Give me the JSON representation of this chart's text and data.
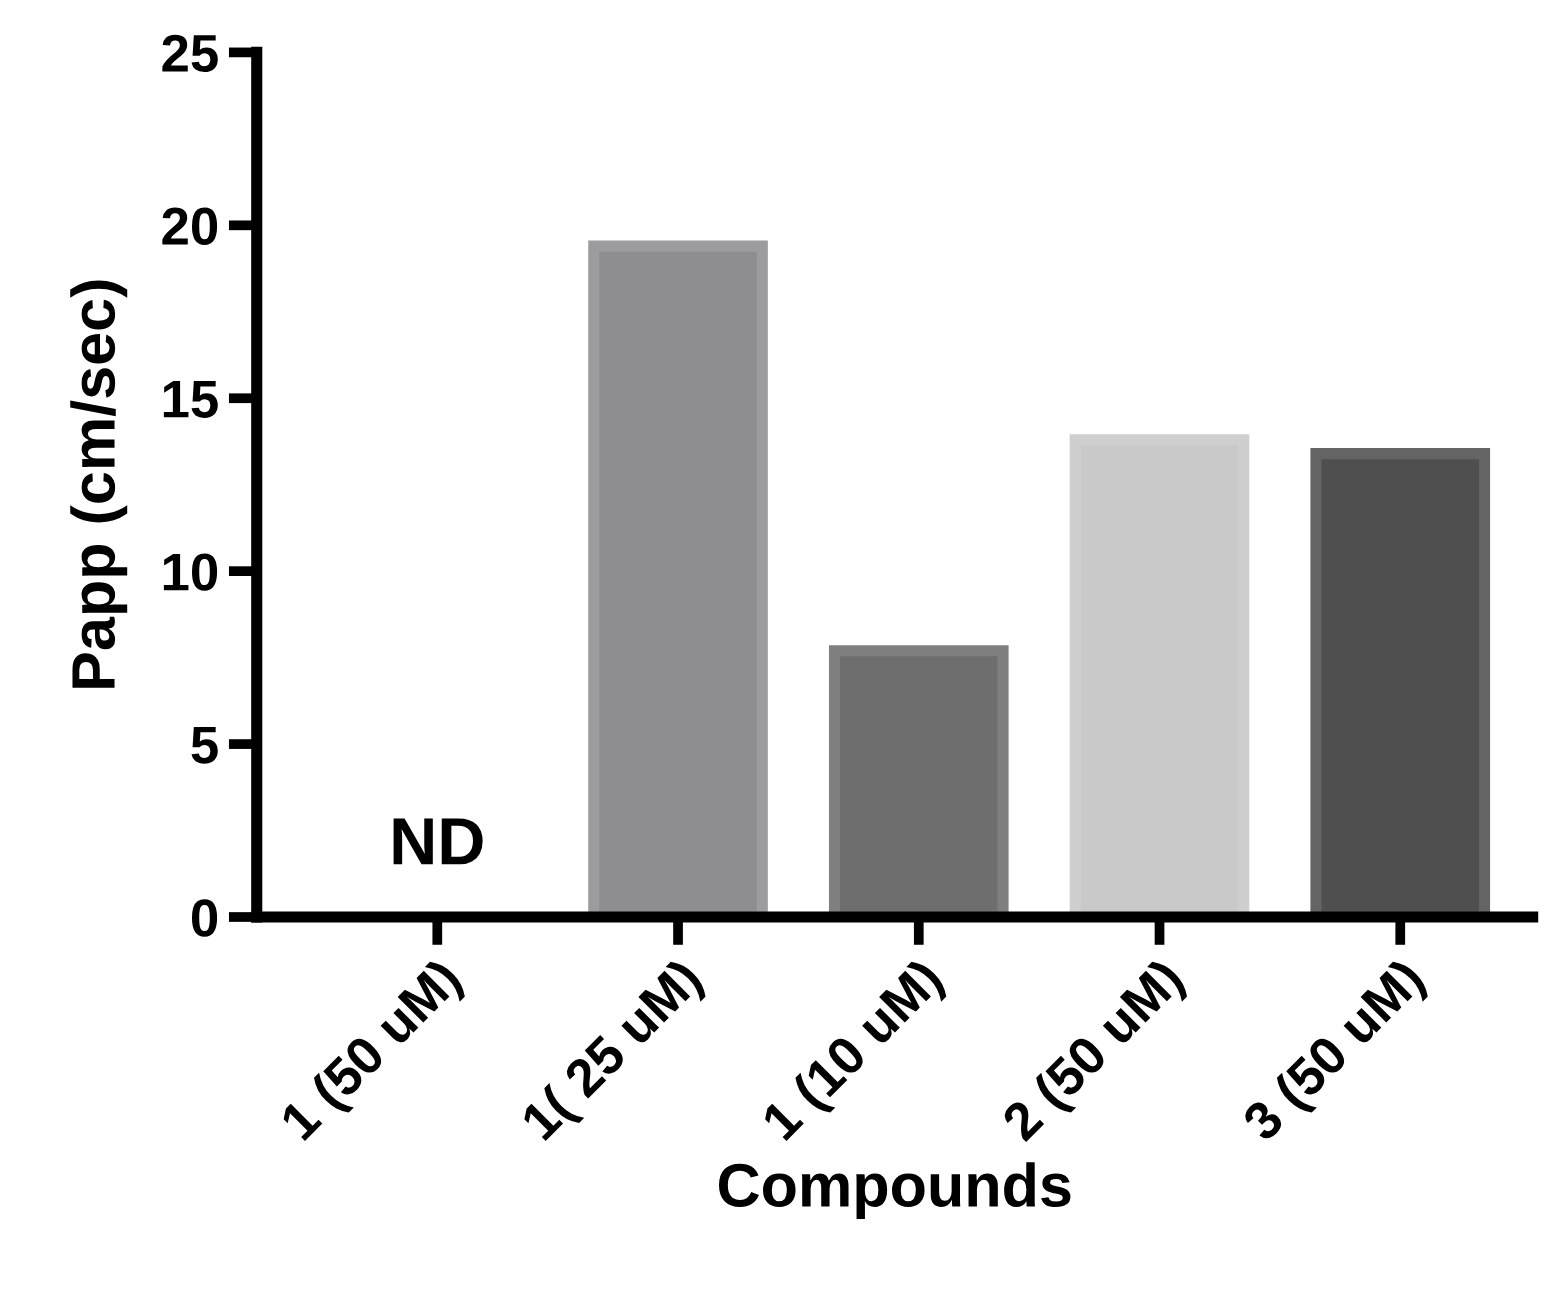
{
  "chart_data": {
    "type": "bar",
    "xlabel": "Compounds",
    "ylabel": "Papp (cm/sec)",
    "categories": [
      "1 (50 uM)",
      "1( 25 uM)",
      "1 (10 uM)",
      "2 (50 uM)",
      "3 (50 uM)"
    ],
    "values": [
      null,
      19.4,
      7.7,
      13.8,
      13.4
    ],
    "colors": [
      "#8e8d92",
      "#8e8d92",
      "#6e6e6e",
      "#c9c9c9",
      "#4f4f4f"
    ],
    "ylim": [
      0,
      25
    ],
    "yticks": [
      0,
      5,
      10,
      15,
      20,
      25
    ],
    "grid": false,
    "annotations": [
      "ND"
    ]
  }
}
